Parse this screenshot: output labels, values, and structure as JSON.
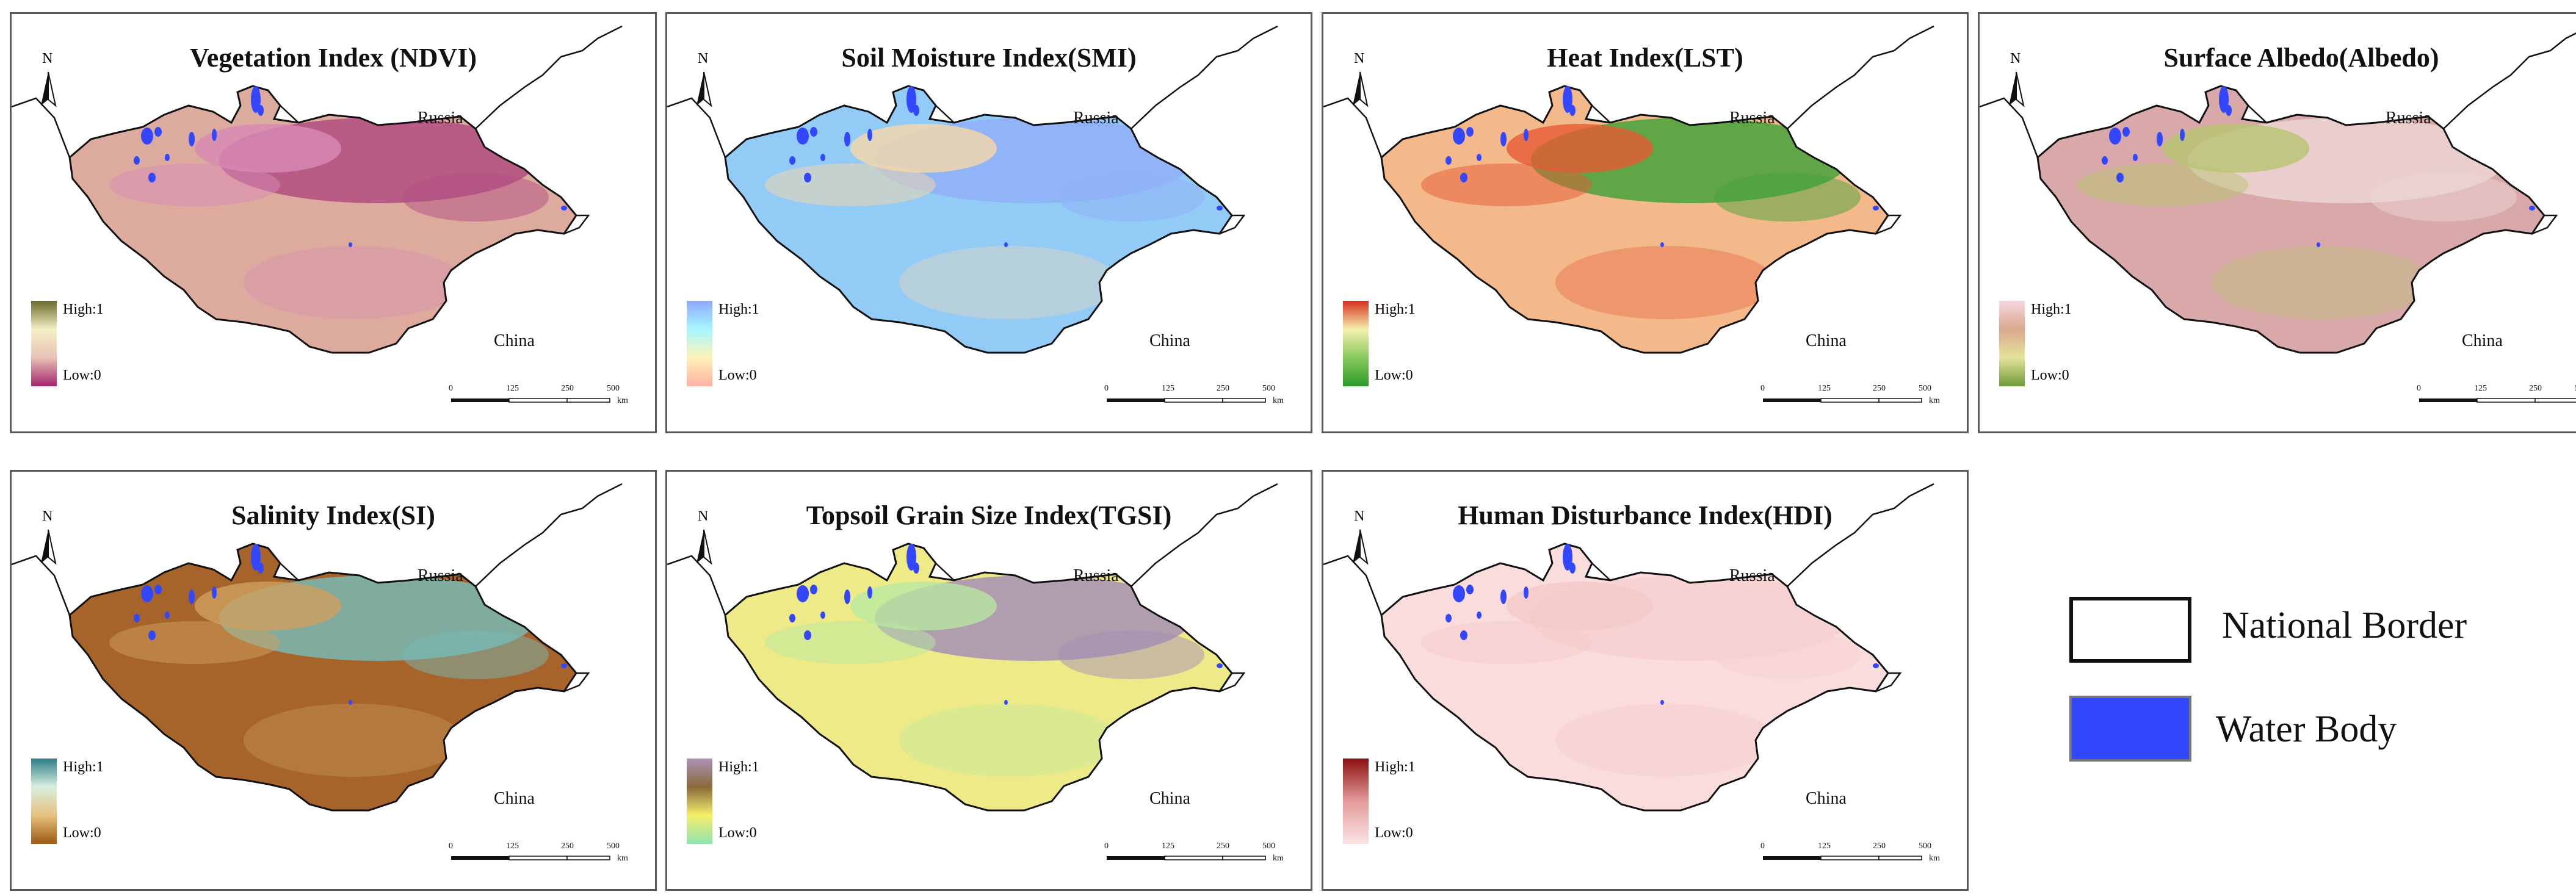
{
  "panels": [
    {
      "id": "ndvi",
      "title": "Vegetation Index (NDVI)",
      "high": "High:1",
      "low": "Low:0",
      "ramp": [
        "#6b6a2b",
        "#f3f0c4",
        "#e9c1b6",
        "#a3236c"
      ],
      "base": "#dcab9d",
      "hi": "#b24d82",
      "hi2": "#d88ab5"
    },
    {
      "id": "smi",
      "title": "Soil Moisture Index(SMI)",
      "high": "High:1",
      "low": "Low:0",
      "ramp": [
        "#8fa7ff",
        "#a7f6ff",
        "#fff2b8",
        "#ffb1a3"
      ],
      "base": "#93cbf7",
      "hi": "#8fb0f7",
      "hi2": "#f7d7a8"
    },
    {
      "id": "lst",
      "title": "Heat  Index(LST)",
      "high": "High:1",
      "low": "Low:0",
      "ramp": [
        "#d6301e",
        "#f7f0b0",
        "#87c95a",
        "#2b9b2b"
      ],
      "base": "#f4b98a",
      "hi": "#45a23a",
      "hi2": "#e65a33"
    },
    {
      "id": "albedo",
      "title": "Surface Albedo(Albedo)",
      "high": "High:1",
      "low": "Low:0",
      "ramp": [
        "#f4d6e0",
        "#dba88f",
        "#e4e29c",
        "#6f9a37"
      ],
      "base": "#d9a9a9",
      "hi": "#ebd5d3",
      "hi2": "#b7c46f"
    },
    {
      "id": "si",
      "title": "Salinity Index(SI)",
      "high": "High:1",
      "low": "Low:0",
      "ramp": [
        "#2d7d86",
        "#d8efe0",
        "#e6c07d",
        "#9b5a12"
      ],
      "base": "#a7642a",
      "hi": "#78b8b3",
      "hi2": "#cfa05e"
    },
    {
      "id": "tgsi",
      "title": "Topsoil Grain Size Index(TGSI)",
      "high": "High:1",
      "low": "Low:0",
      "ramp": [
        "#a993b5",
        "#8b6a3c",
        "#f4f06a",
        "#8fe3b3"
      ],
      "base": "#eeea88",
      "hi": "#a58fb5",
      "hi2": "#b8e8a0"
    },
    {
      "id": "hdi",
      "title": "Human Disturbance Index(HDI)",
      "high": "High:1",
      "low": "Low:0",
      "ramp": [
        "#8a0f0f",
        "#e49b9b",
        "#fbe3e3"
      ],
      "base": "#fadcdc",
      "hi": "#f6d0d0",
      "hi2": "#f3c9c9"
    }
  ],
  "labels": {
    "russia": "Russia",
    "china": "China"
  },
  "scale": {
    "ticks": [
      "0",
      "125",
      "250",
      "500"
    ],
    "unit": "km"
  },
  "legend": {
    "border_label": "National Border",
    "water_label": "Water Body",
    "water_color": "#3347ff"
  }
}
